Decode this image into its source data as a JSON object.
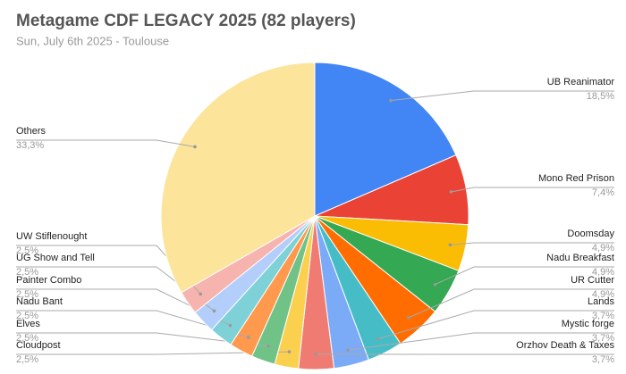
{
  "chart_data": {
    "type": "pie",
    "title": "Metagame CDF LEGACY 2025 (82 players)",
    "subtitle": "Sun, July 6th 2025 - Toulouse",
    "categories": [
      "UB Reanimator",
      "Mono Red Prison",
      "Doomsday",
      "Nadu Breakfast",
      "UR Cutter",
      "Lands",
      "Mystic forge",
      "Orzhov Death & Taxes",
      "Cloudpost",
      "Elves",
      "Nadu Bant",
      "Painter Combo",
      "UG Show and Tell",
      "UW Stiflenought",
      "Others"
    ],
    "values": [
      18.5,
      7.4,
      4.9,
      4.9,
      4.9,
      3.7,
      3.7,
      3.7,
      2.5,
      2.5,
      2.5,
      2.5,
      2.5,
      2.5,
      33.3
    ],
    "value_labels": [
      "18,5%",
      "7,4%",
      "4,9%",
      "4,9%",
      "4,9%",
      "3,7%",
      "3,7%",
      "3,7%",
      "2,5%",
      "2,5%",
      "2,5%",
      "2,5%",
      "2,5%",
      "2,5%",
      "33,3%"
    ],
    "colors": [
      "#4285f4",
      "#ea4335",
      "#fbbc04",
      "#34a853",
      "#ff6d01",
      "#46bdc6",
      "#7baaf7",
      "#f07b72",
      "#fcd04f",
      "#71c287",
      "#ff994d",
      "#7ed1d7",
      "#b3cefb",
      "#f7b4ae",
      "#fde49b"
    ]
  }
}
